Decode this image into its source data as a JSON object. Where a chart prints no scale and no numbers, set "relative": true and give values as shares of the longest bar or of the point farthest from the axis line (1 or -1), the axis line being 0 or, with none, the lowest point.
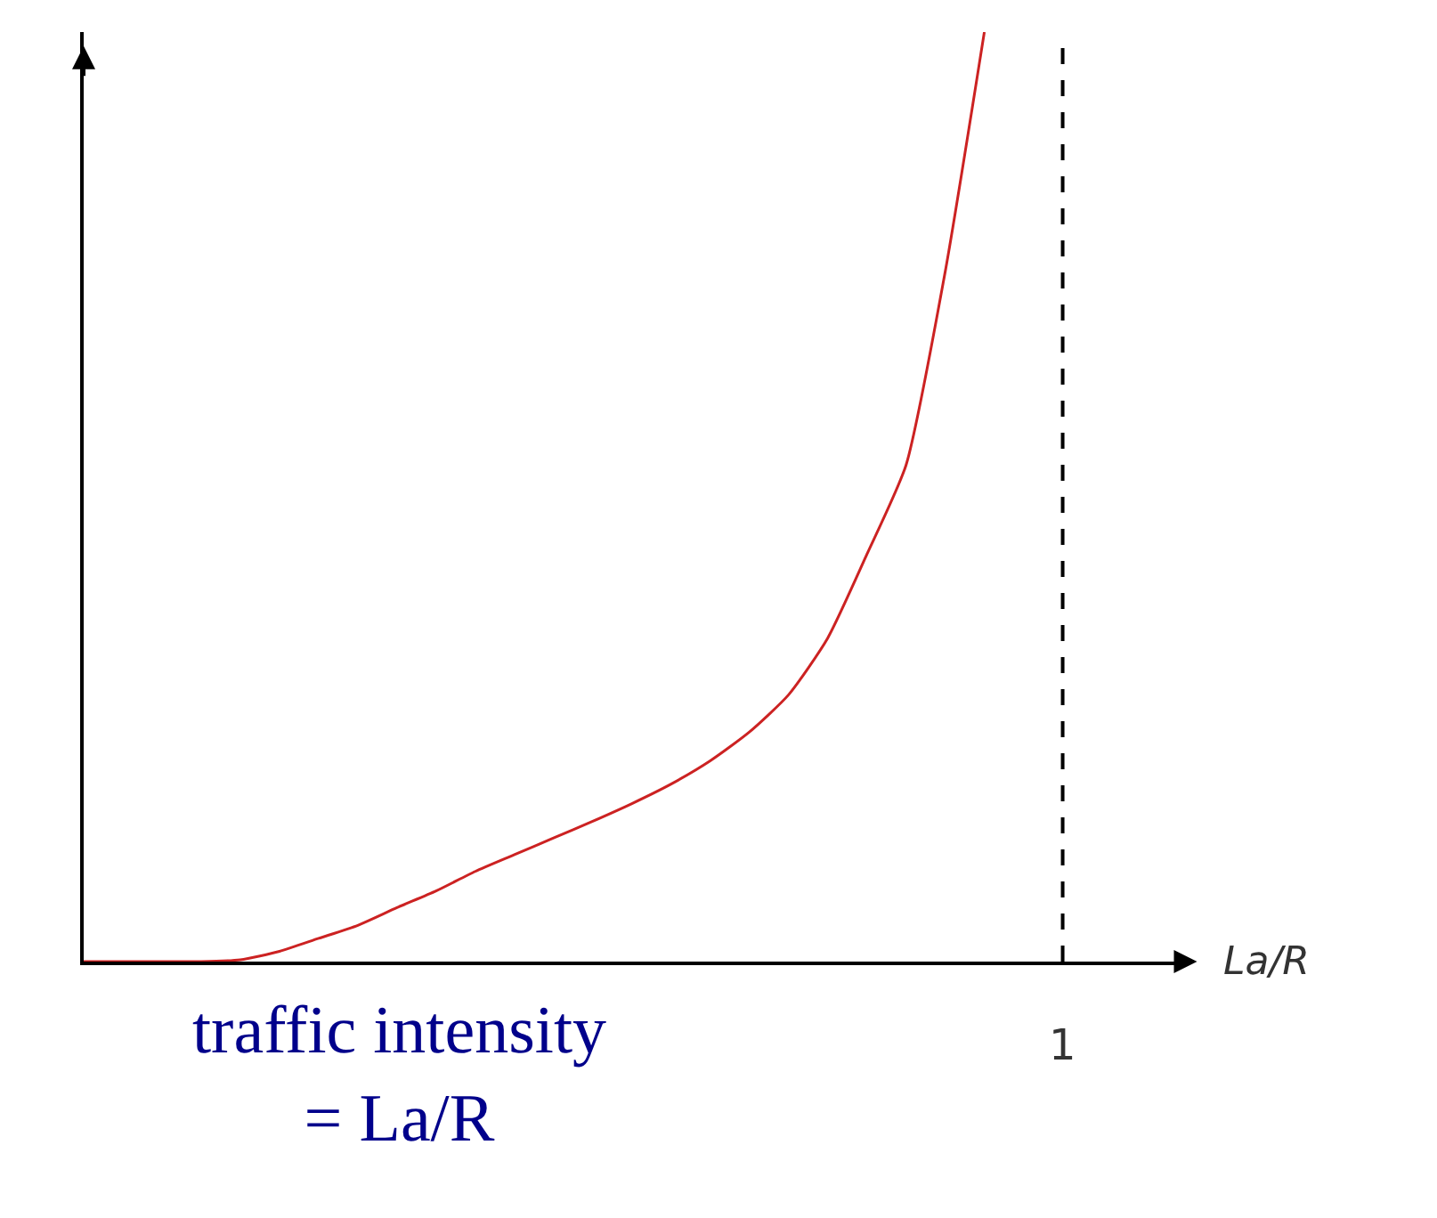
{
  "chart_data": {
    "type": "line",
    "relative": true,
    "line_style": "solid",
    "categories": [
      null,
      null,
      null,
      null,
      null,
      null,
      null,
      null,
      null,
      null,
      null,
      null,
      null,
      null,
      null,
      null,
      null,
      null,
      null,
      null,
      null,
      null,
      null,
      null,
      null,
      null
    ],
    "series": [
      {
        "color": "#cc2222",
        "values": [
          0,
          0,
          0,
          0,
          0.002,
          0.011,
          0.025,
          0.039,
          0.058,
          0.076,
          0.097,
          0.115,
          0.133,
          0.151,
          0.17,
          0.191,
          0.216,
          0.247,
          0.287,
          0.348,
          0.438,
          0.534,
          0.742,
          1,
          null,
          null
        ]
      }
    ],
    "annotations": [
      "traffic intensity\n= La/R",
      "1",
      "La/R"
    ]
  }
}
